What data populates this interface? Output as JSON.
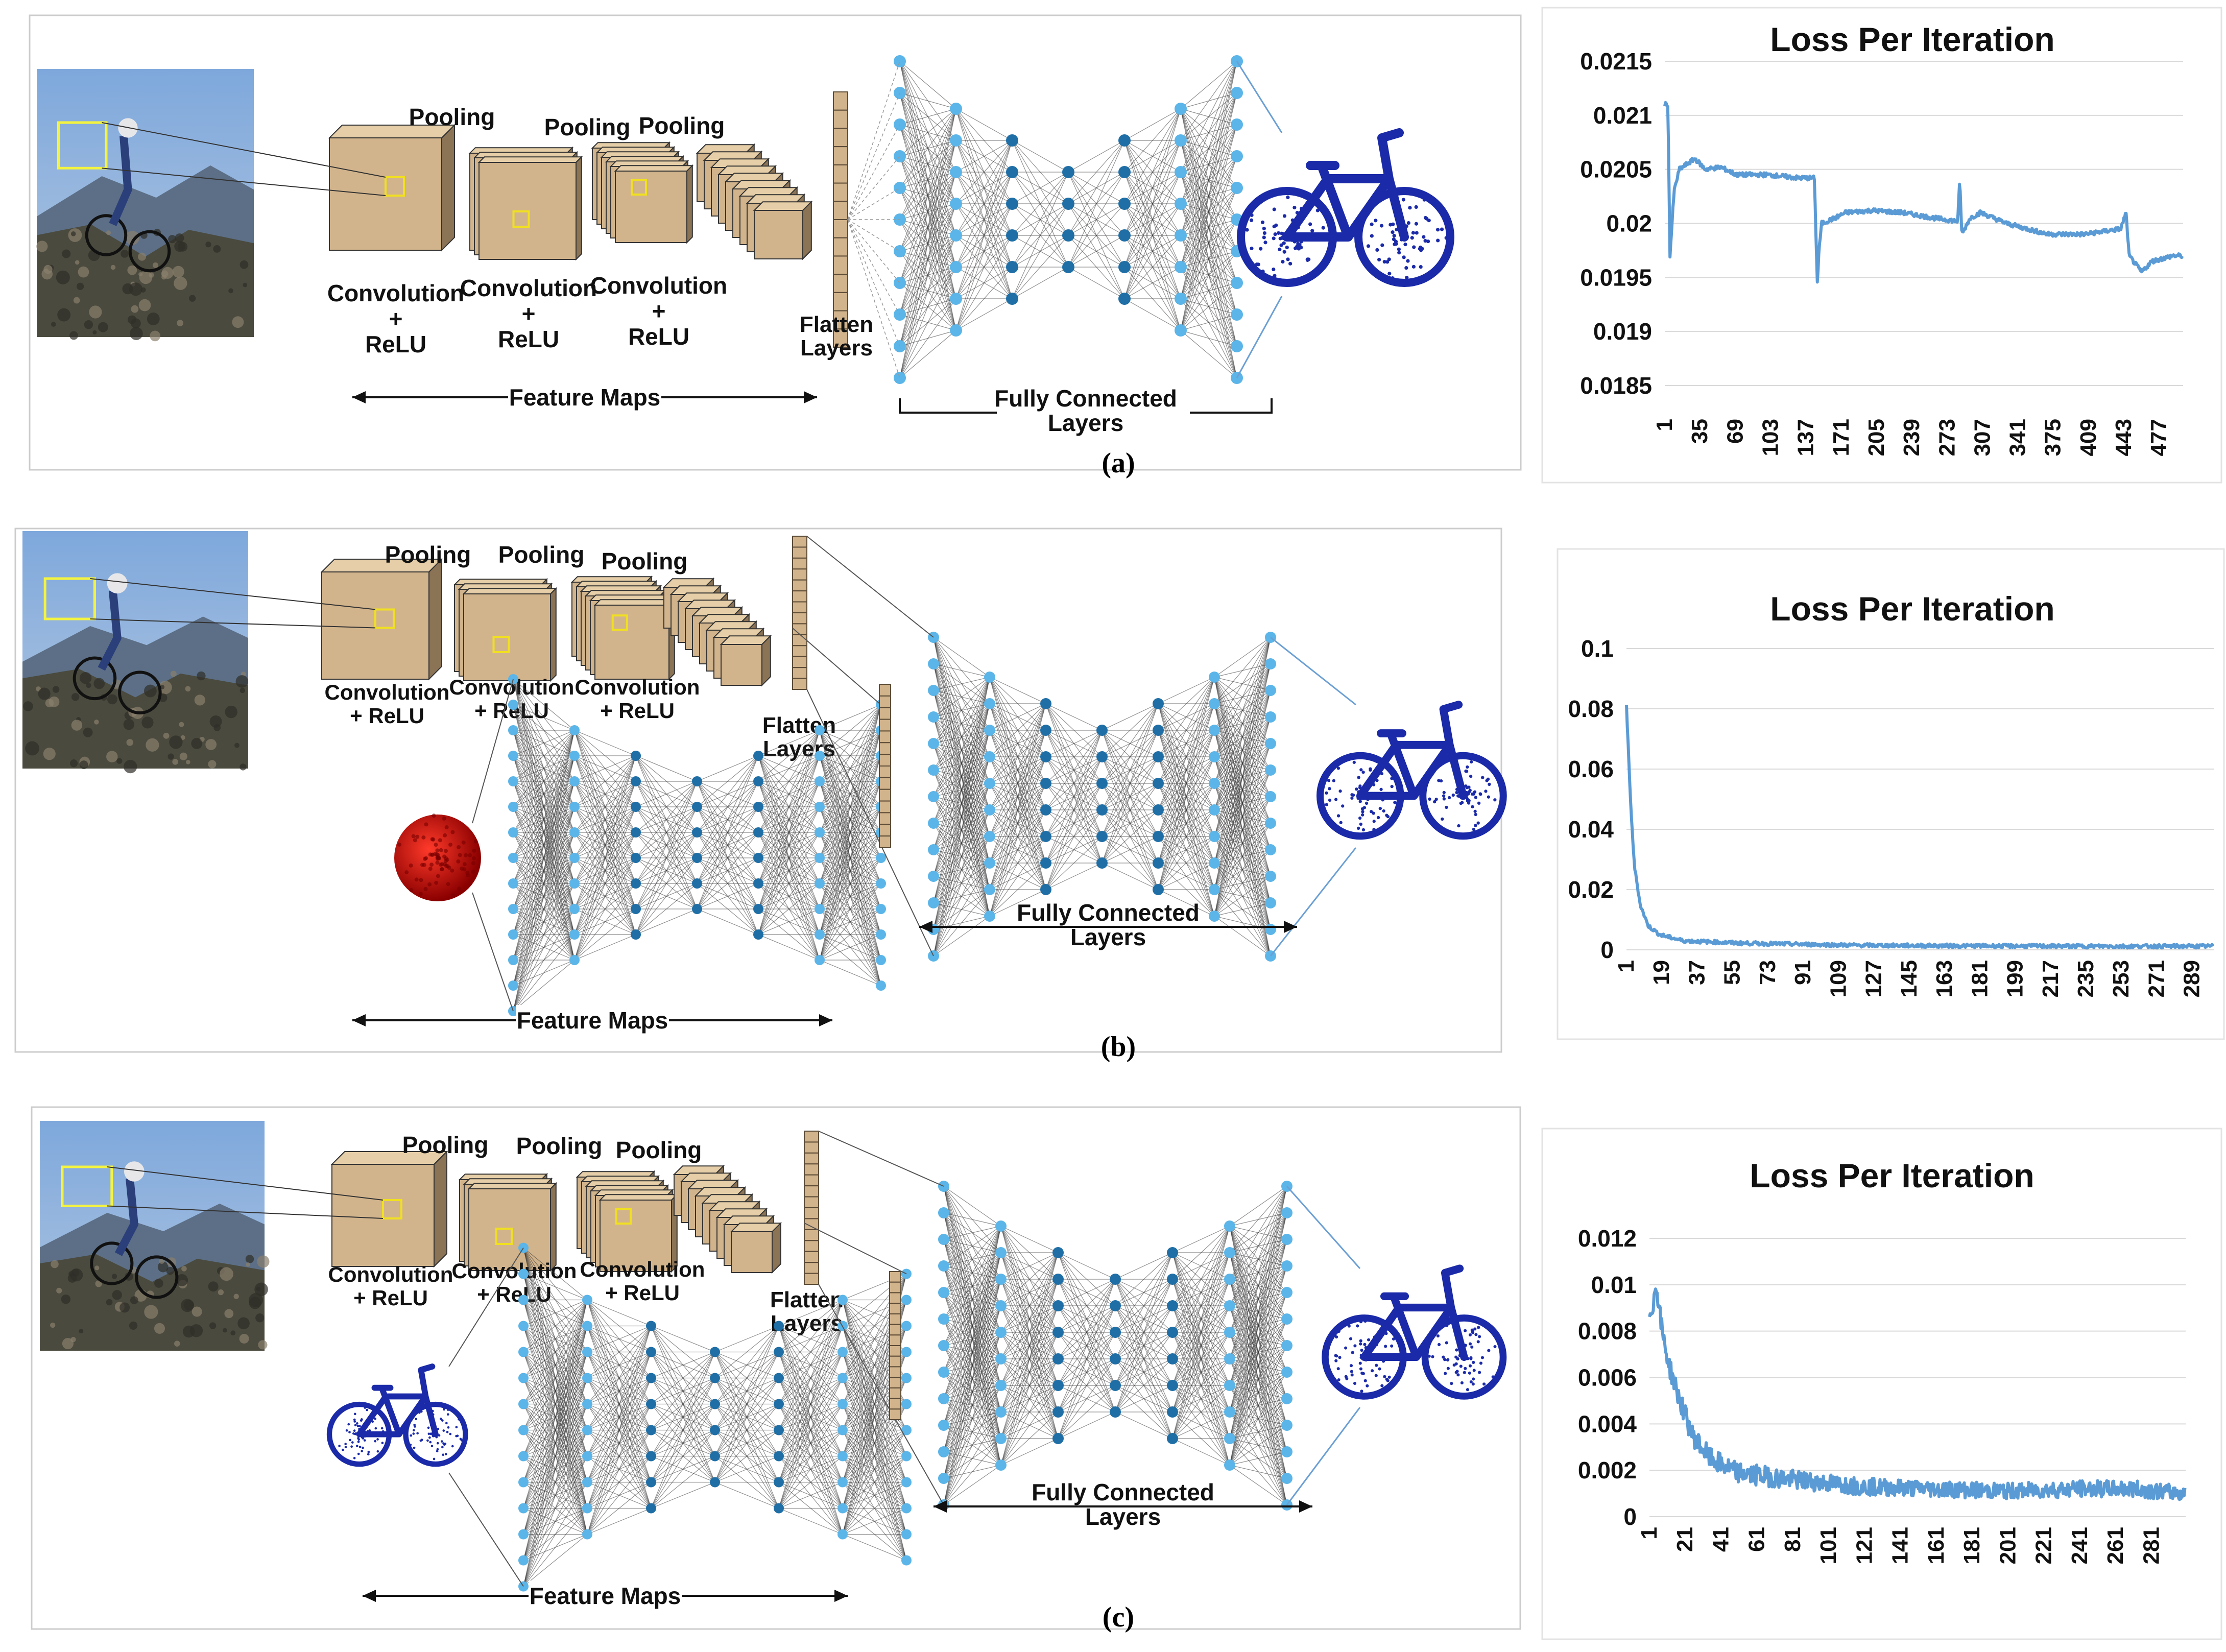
{
  "panels": [
    {
      "caption": "(a)",
      "labels": {
        "pooling": "Pooling",
        "conv_relu_top": "Convolution",
        "conv_relu_plus": "+",
        "conv_relu_bottom": "ReLU",
        "flatten_top": "Flatten",
        "flatten_bottom": "Layers",
        "feature_maps": "Feature Maps",
        "fc_top": "Fully Connected",
        "fc_bottom": "Layers"
      },
      "secondary_input": "none"
    },
    {
      "caption": "(b)",
      "labels": {
        "pooling": "Pooling",
        "conv_relu_top": "Convolution",
        "conv_relu_bottom": "+ ReLU",
        "flatten_top": "Flatten",
        "flatten_bottom": "Layers",
        "feature_maps": "Feature Maps",
        "fc_top": "Fully Connected",
        "fc_bottom": "Layers"
      },
      "secondary_input": "red-sphere"
    },
    {
      "caption": "(c)",
      "labels": {
        "pooling": "Pooling",
        "conv_relu_top": "Convolution",
        "conv_relu_bottom": "+ ReLU",
        "flatten_top": "Flatten",
        "flatten_bottom": "Layers",
        "feature_maps": "Feature Maps",
        "fc_top": "Fully Connected",
        "fc_bottom": "Layers"
      },
      "secondary_input": "blue-bicycle"
    }
  ],
  "colors": {
    "node_light": "#5bb5e8",
    "node_dark": "#1f6fa6",
    "line": "#6b9fd4",
    "cube_face": "#d2b48c",
    "cube_dark": "#8b7355",
    "bike_blue": "#1a2aa8",
    "sphere_red": "#c40000"
  },
  "chart_data": [
    {
      "type": "line",
      "title": "Loss Per Iteration",
      "y_ticks": [
        "0.0215",
        "0.021",
        "0.0205",
        "0.02",
        "0.0195",
        "0.019",
        "0.0185"
      ],
      "ylim": [
        0.0185,
        0.0215
      ],
      "x_ticks": [
        "1",
        "35",
        "69",
        "103",
        "137",
        "171",
        "205",
        "239",
        "273",
        "307",
        "341",
        "375",
        "409",
        "443",
        "477"
      ],
      "xlim": [
        1,
        500
      ],
      "anchors": [
        [
          1,
          0.0211
        ],
        [
          4,
          0.0211
        ],
        [
          6,
          0.0197
        ],
        [
          10,
          0.0203
        ],
        [
          15,
          0.0205
        ],
        [
          30,
          0.0206
        ],
        [
          40,
          0.0205
        ],
        [
          55,
          0.02052
        ],
        [
          70,
          0.02045
        ],
        [
          100,
          0.02045
        ],
        [
          130,
          0.02042
        ],
        [
          145,
          0.02042
        ],
        [
          148,
          0.0194
        ],
        [
          149,
          0.0197
        ],
        [
          152,
          0.02
        ],
        [
          165,
          0.02005
        ],
        [
          175,
          0.0201
        ],
        [
          200,
          0.02012
        ],
        [
          230,
          0.0201
        ],
        [
          260,
          0.02005
        ],
        [
          283,
          0.02002
        ],
        [
          285,
          0.0204
        ],
        [
          287,
          0.0199
        ],
        [
          295,
          0.02005
        ],
        [
          305,
          0.0201
        ],
        [
          330,
          0.02
        ],
        [
          370,
          0.0199
        ],
        [
          405,
          0.0199
        ],
        [
          440,
          0.01995
        ],
        [
          445,
          0.0201
        ],
        [
          448,
          0.0197
        ],
        [
          460,
          0.01955
        ],
        [
          470,
          0.01965
        ],
        [
          490,
          0.0197
        ],
        [
          500,
          0.0197
        ]
      ],
      "noise": 2e-05
    },
    {
      "type": "line",
      "title": "Loss Per Iteration",
      "y_ticks": [
        "0.1",
        "0.08",
        "0.06",
        "0.04",
        "0.02",
        "0"
      ],
      "ylim": [
        0,
        0.1
      ],
      "x_ticks": [
        "1",
        "19",
        "37",
        "55",
        "73",
        "91",
        "109",
        "127",
        "145",
        "163",
        "181",
        "199",
        "217",
        "235",
        "253",
        "271",
        "289"
      ],
      "xlim": [
        1,
        300
      ],
      "anchors": [
        [
          1,
          0.081
        ],
        [
          3,
          0.05
        ],
        [
          5,
          0.028
        ],
        [
          8,
          0.015
        ],
        [
          12,
          0.008
        ],
        [
          18,
          0.005
        ],
        [
          30,
          0.003
        ],
        [
          60,
          0.0022
        ],
        [
          120,
          0.0015
        ],
        [
          180,
          0.0013
        ],
        [
          240,
          0.0012
        ],
        [
          300,
          0.0012
        ]
      ],
      "noise": 0.0006
    },
    {
      "type": "line",
      "title": "Loss Per Iteration",
      "y_ticks": [
        "0.012",
        "0.01",
        "0.008",
        "0.006",
        "0.004",
        "0.002",
        "0"
      ],
      "ylim": [
        0,
        0.012
      ],
      "x_ticks": [
        "1",
        "21",
        "41",
        "61",
        "81",
        "101",
        "121",
        "141",
        "161",
        "181",
        "201",
        "221",
        "241",
        "261",
        "281"
      ],
      "xlim": [
        1,
        300
      ],
      "anchors": [
        [
          1,
          0.0088
        ],
        [
          3,
          0.0092
        ],
        [
          5,
          0.01
        ],
        [
          8,
          0.008
        ],
        [
          12,
          0.0065
        ],
        [
          18,
          0.005
        ],
        [
          25,
          0.0035
        ],
        [
          35,
          0.0025
        ],
        [
          50,
          0.0019
        ],
        [
          80,
          0.0016
        ],
        [
          120,
          0.0013
        ],
        [
          160,
          0.0012
        ],
        [
          200,
          0.0011
        ],
        [
          240,
          0.0012
        ],
        [
          270,
          0.0012
        ],
        [
          300,
          0.001
        ]
      ],
      "noise": 0.00045
    }
  ]
}
